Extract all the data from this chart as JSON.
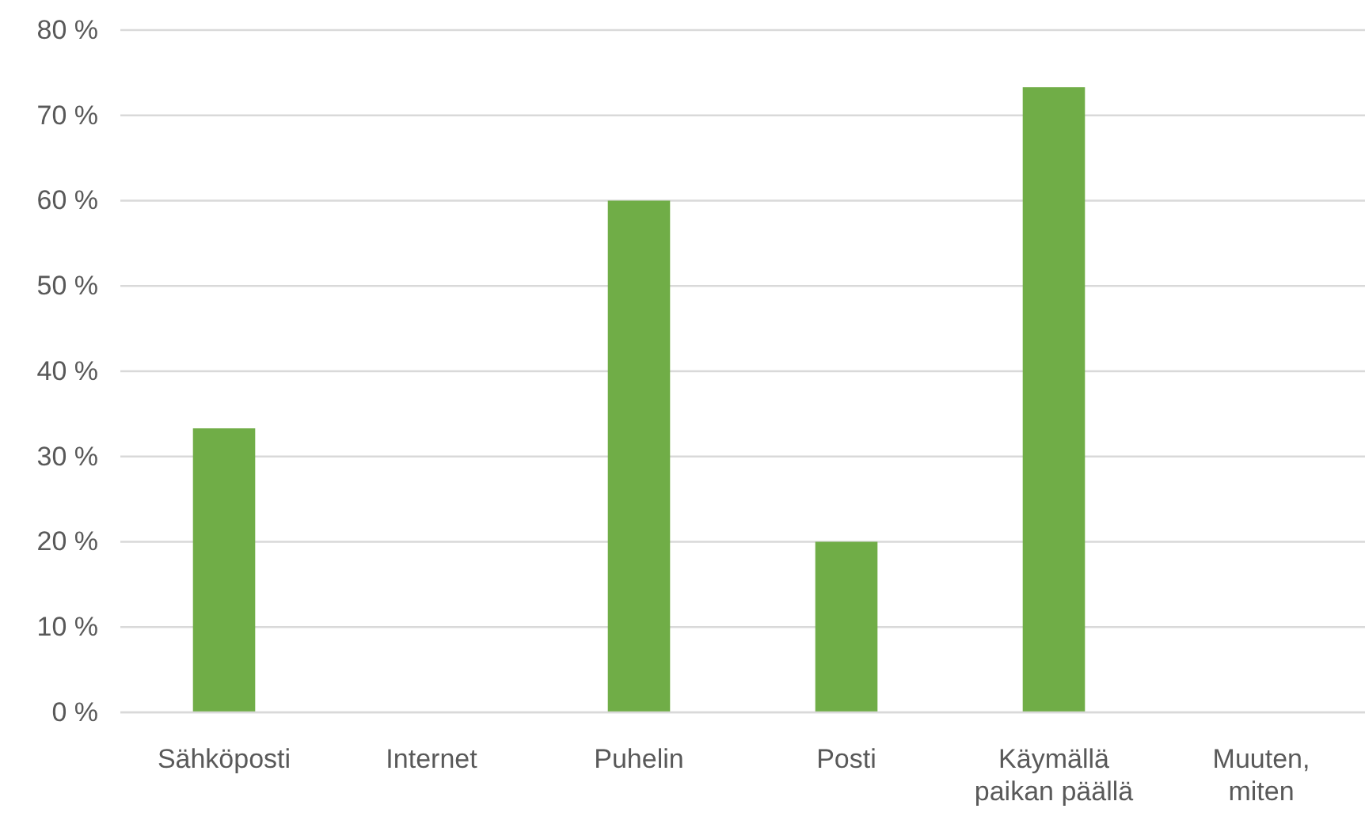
{
  "chart_data": {
    "type": "bar",
    "categories": [
      "Sähköposti",
      "Internet",
      "Puhelin",
      "Posti",
      "Käymällä\npaikan päällä",
      "Muuten,\nmiten"
    ],
    "values": [
      33.3,
      0,
      60,
      20,
      73.3,
      0
    ],
    "color": "#70ad47",
    "ylim": [
      0,
      80
    ],
    "yticks": [
      {
        "value": 0,
        "label": "0 %"
      },
      {
        "value": 10,
        "label": "10 %"
      },
      {
        "value": 20,
        "label": "20 %"
      },
      {
        "value": 30,
        "label": "30 %"
      },
      {
        "value": 40,
        "label": "40 %"
      },
      {
        "value": 50,
        "label": "50 %"
      },
      {
        "value": 60,
        "label": "60 %"
      },
      {
        "value": 70,
        "label": "70 %"
      },
      {
        "value": 80,
        "label": "80 %"
      }
    ],
    "grid": "y"
  }
}
